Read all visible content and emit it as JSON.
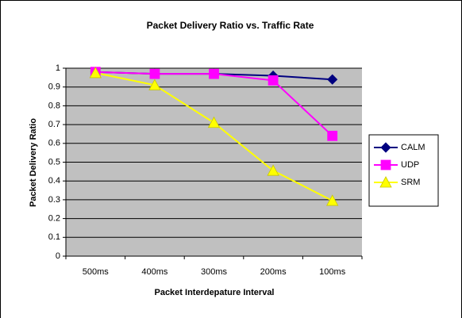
{
  "chart_data": {
    "type": "line",
    "title": "Packet Delivery Ratio vs. Traffic Rate",
    "x_label": "Packet Interdepature Interval",
    "y_label": "Packet Delivery Ratio",
    "categories": [
      "500ms",
      "400ms",
      "300ms",
      "200ms",
      "100ms"
    ],
    "series": [
      {
        "name": "CALM",
        "color": "#000080",
        "marker": "diamond",
        "values": [
          0.98,
          0.97,
          0.97,
          0.96,
          0.94
        ]
      },
      {
        "name": "UDP",
        "color": "#ff00ff",
        "marker": "square",
        "values": [
          0.98,
          0.97,
          0.97,
          0.935,
          0.64
        ]
      },
      {
        "name": "SRM",
        "color": "#ffff00",
        "marker": "triangle",
        "values": [
          0.975,
          0.91,
          0.71,
          0.455,
          0.295
        ]
      }
    ],
    "ylim": [
      0,
      1
    ],
    "yticks": [
      0,
      0.1,
      0.2,
      0.3,
      0.4,
      0.5,
      0.6,
      0.7,
      0.8,
      0.9,
      1
    ],
    "grid": true,
    "legend": "right"
  }
}
